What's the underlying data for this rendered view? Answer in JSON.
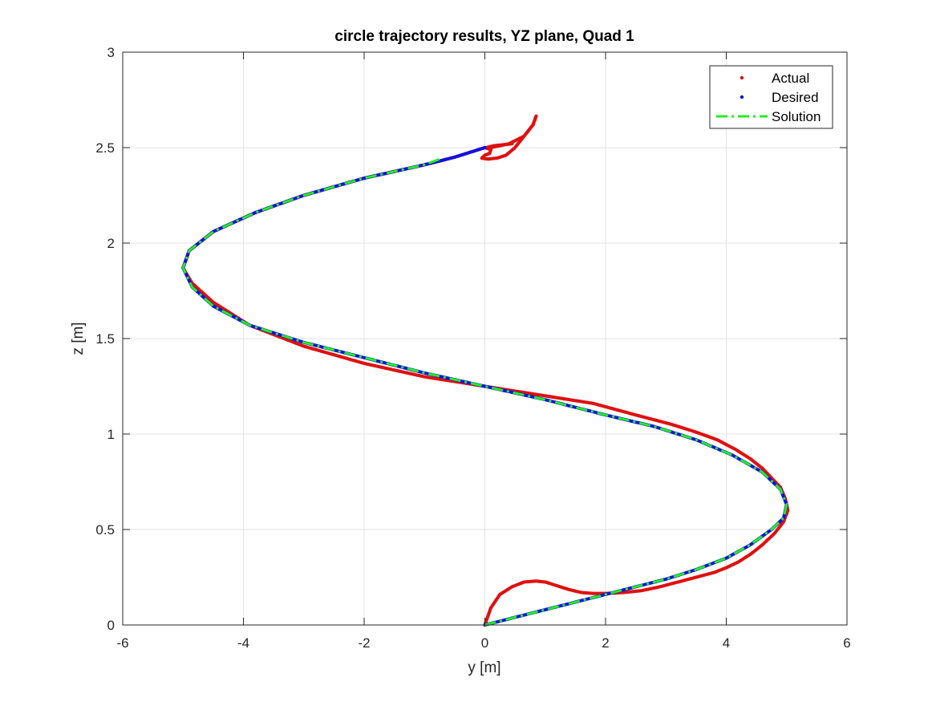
{
  "chart_data": {
    "type": "line",
    "title": "circle trajectory results, YZ plane, Quad 1",
    "xlabel": "y [m]",
    "ylabel": "z [m]",
    "xlim": [
      -6,
      6
    ],
    "ylim": [
      0,
      3
    ],
    "xticks": [
      -6,
      -4,
      -2,
      0,
      2,
      4,
      6
    ],
    "xtick_labels": [
      "-6",
      "-4",
      "-2",
      "0",
      "2",
      "4",
      "6"
    ],
    "yticks": [
      0,
      0.5,
      1,
      1.5,
      2,
      2.5,
      3
    ],
    "ytick_labels": [
      "0",
      "0.5",
      "1",
      "1.5",
      "2",
      "2.5",
      "3"
    ],
    "grid": true,
    "legend_position": "top-right",
    "colors": {
      "actual": "#e01010",
      "desired": "#1010e0",
      "solution": "#22ee22",
      "grid": "#e3e3e3",
      "axis": "#262626"
    },
    "series": [
      {
        "name": "Actual",
        "style": "dots",
        "x": [
          0.0,
          0.1,
          0.25,
          0.45,
          0.65,
          0.85,
          1.0,
          1.2,
          1.4,
          1.6,
          1.8,
          2.0,
          2.3,
          2.6,
          2.9,
          3.2,
          3.5,
          3.8,
          4.0,
          4.2,
          4.4,
          4.6,
          4.8,
          4.95,
          5.02,
          4.98,
          4.9,
          4.75,
          4.6,
          4.4,
          4.15,
          3.85,
          3.5,
          3.1,
          2.5,
          1.8,
          1.0,
          0.0,
          -1.0,
          -2.0,
          -3.0,
          -3.9,
          -4.5,
          -4.85,
          -5.0,
          -4.9,
          -4.5,
          -3.8,
          -3.0,
          -2.0,
          -1.0,
          -0.5,
          -0.2,
          0.0,
          0.1,
          0.08,
          0.0,
          -0.05,
          0.05,
          0.2,
          0.35,
          0.5,
          0.65,
          0.8,
          0.85,
          0.8,
          0.65,
          0.4,
          0.1,
          0.02,
          0.15,
          0.45
        ],
        "y": [
          0.0,
          0.09,
          0.16,
          0.2,
          0.225,
          0.23,
          0.225,
          0.205,
          0.185,
          0.17,
          0.165,
          0.165,
          0.17,
          0.18,
          0.2,
          0.225,
          0.25,
          0.275,
          0.3,
          0.33,
          0.37,
          0.42,
          0.48,
          0.54,
          0.6,
          0.66,
          0.72,
          0.77,
          0.82,
          0.87,
          0.92,
          0.97,
          1.01,
          1.05,
          1.1,
          1.16,
          1.2,
          1.25,
          1.3,
          1.37,
          1.46,
          1.57,
          1.69,
          1.79,
          1.87,
          1.96,
          2.06,
          2.16,
          2.25,
          2.34,
          2.41,
          2.45,
          2.48,
          2.5,
          2.49,
          2.47,
          2.46,
          2.445,
          2.44,
          2.445,
          2.46,
          2.5,
          2.56,
          2.62,
          2.665,
          2.62,
          2.56,
          2.52,
          2.5,
          2.5,
          2.51,
          2.52
        ]
      },
      {
        "name": "Desired",
        "style": "dots",
        "x": [
          0.0,
          0.5,
          1.0,
          1.5,
          2.0,
          2.5,
          3.0,
          3.5,
          4.0,
          4.4,
          4.75,
          4.95,
          5.0,
          4.9,
          4.6,
          4.1,
          3.5,
          2.8,
          2.0,
          1.0,
          0.0,
          -1.0,
          -2.0,
          -3.0,
          -3.9,
          -4.5,
          -4.85,
          -5.0,
          -4.9,
          -4.5,
          -3.8,
          -3.0,
          -2.0,
          -1.0,
          -0.5,
          0.0
        ],
        "y": [
          0.0,
          0.04,
          0.08,
          0.12,
          0.16,
          0.2,
          0.24,
          0.29,
          0.35,
          0.42,
          0.5,
          0.56,
          0.63,
          0.71,
          0.8,
          0.89,
          0.97,
          1.04,
          1.1,
          1.18,
          1.25,
          1.32,
          1.4,
          1.48,
          1.57,
          1.67,
          1.77,
          1.87,
          1.96,
          2.06,
          2.16,
          2.25,
          2.34,
          2.41,
          2.45,
          2.5
        ]
      },
      {
        "name": "Solution",
        "style": "dash-dot",
        "x": [
          0.0,
          0.5,
          1.0,
          1.5,
          2.0,
          2.5,
          3.0,
          3.5,
          4.0,
          4.4,
          4.75,
          4.95,
          5.0,
          4.9,
          4.6,
          4.1,
          3.5,
          2.8,
          2.0,
          1.0,
          0.0,
          -1.0,
          -2.0,
          -3.0,
          -3.9,
          -4.5,
          -4.85,
          -5.0,
          -4.9,
          -4.5,
          -3.8,
          -3.0,
          -2.0,
          -1.0,
          -0.75
        ],
        "y": [
          0.0,
          0.04,
          0.08,
          0.12,
          0.16,
          0.2,
          0.24,
          0.29,
          0.35,
          0.42,
          0.5,
          0.56,
          0.63,
          0.71,
          0.8,
          0.89,
          0.97,
          1.04,
          1.1,
          1.18,
          1.25,
          1.32,
          1.4,
          1.48,
          1.57,
          1.67,
          1.77,
          1.87,
          1.96,
          2.06,
          2.16,
          2.25,
          2.34,
          2.41,
          2.44
        ]
      }
    ]
  }
}
